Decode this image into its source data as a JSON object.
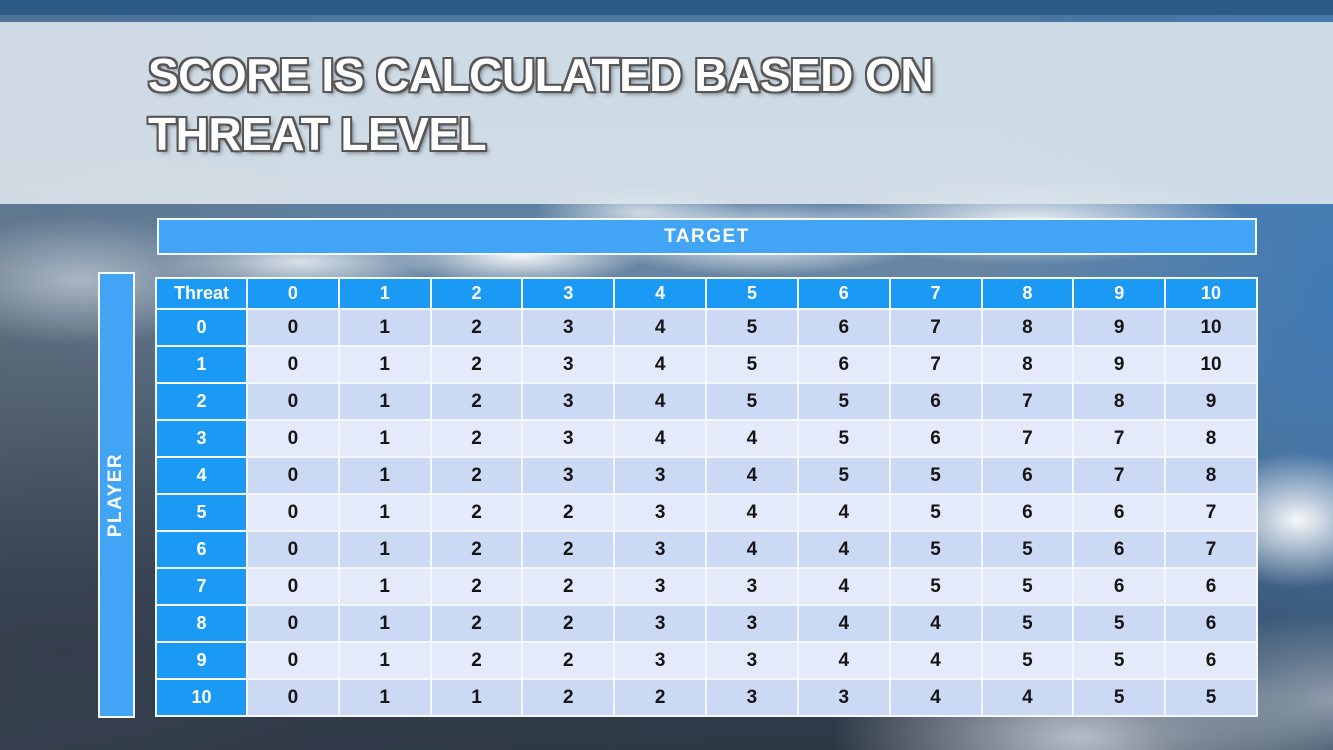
{
  "slide": {
    "title_line1": "SCORE IS CALCULATED BASED ON",
    "title_line2": "THREAT LEVEL"
  },
  "matrix": {
    "target_label": "TARGET",
    "player_label": "PLAYER",
    "corner_label": "Threat",
    "column_headers": [
      "0",
      "1",
      "2",
      "3",
      "4",
      "5",
      "6",
      "7",
      "8",
      "9",
      "10"
    ],
    "row_headers": [
      "0",
      "1",
      "2",
      "3",
      "4",
      "5",
      "6",
      "7",
      "8",
      "9",
      "10"
    ],
    "rows": [
      [
        0,
        1,
        2,
        3,
        4,
        5,
        6,
        7,
        8,
        9,
        10
      ],
      [
        0,
        1,
        2,
        3,
        4,
        5,
        6,
        7,
        8,
        9,
        10
      ],
      [
        0,
        1,
        2,
        3,
        4,
        5,
        5,
        6,
        7,
        8,
        9
      ],
      [
        0,
        1,
        2,
        3,
        4,
        4,
        5,
        6,
        7,
        7,
        8
      ],
      [
        0,
        1,
        2,
        3,
        3,
        4,
        5,
        5,
        6,
        7,
        8
      ],
      [
        0,
        1,
        2,
        2,
        3,
        4,
        4,
        5,
        6,
        6,
        7
      ],
      [
        0,
        1,
        2,
        2,
        3,
        4,
        4,
        5,
        5,
        6,
        7
      ],
      [
        0,
        1,
        2,
        2,
        3,
        3,
        4,
        5,
        5,
        6,
        6
      ],
      [
        0,
        1,
        2,
        2,
        3,
        3,
        4,
        4,
        5,
        5,
        6
      ],
      [
        0,
        1,
        2,
        2,
        3,
        3,
        4,
        4,
        5,
        5,
        6
      ],
      [
        0,
        1,
        1,
        2,
        2,
        3,
        3,
        4,
        4,
        5,
        5
      ]
    ]
  },
  "colors": {
    "header_blue": "#1a9af4",
    "bar_blue": "#41a4f5",
    "row_dark": "#cbd9f4",
    "row_light": "#e5eafb",
    "grid_white": "#f4f8fc",
    "top_bar": "#2b5b84",
    "cell_text": "#151515"
  }
}
